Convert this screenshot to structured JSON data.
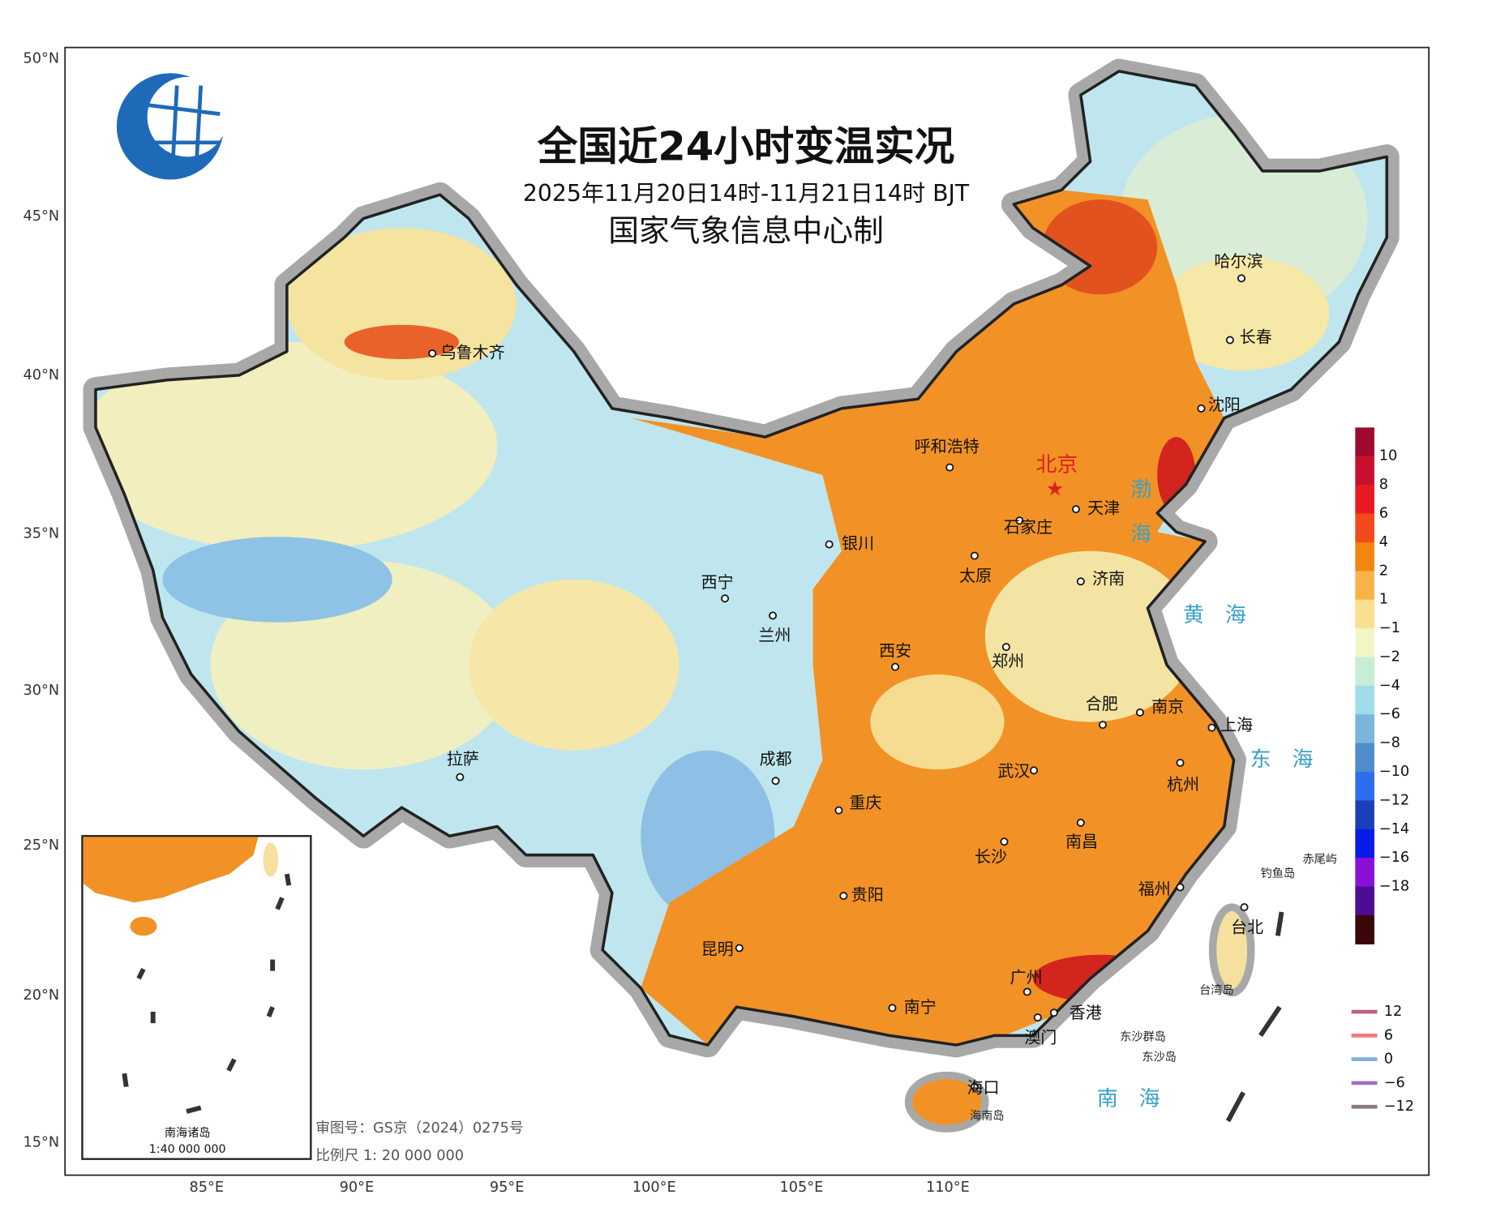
{
  "header": {
    "title": "全国近24小时变温实况",
    "subtitle": "2025年11月20日14时-11月21日14时 BJT",
    "producer": "国家气象信息中心制"
  },
  "axes": {
    "latitude": [
      "50°N",
      "45°N",
      "40°N",
      "35°N",
      "30°N",
      "25°N",
      "20°N",
      "15°N"
    ],
    "longitude": [
      "85°E",
      "90°E",
      "95°E",
      "100°E",
      "105°E",
      "110°E"
    ]
  },
  "legend": {
    "colors": [
      "#9e0b2e",
      "#c8102e",
      "#e81a22",
      "#f24a1c",
      "#f3860e",
      "#f6b448",
      "#f8e08e",
      "#f4f6c6",
      "#c6eed6",
      "#9fdcea",
      "#7ab5dc",
      "#4e8ccb",
      "#2f6df0",
      "#1b3fb8",
      "#0a1ae8",
      "#8a10d8",
      "#4e0c96",
      "#3a0808"
    ],
    "labels": [
      "10",
      "8",
      "6",
      "4",
      "2",
      "1",
      "−1",
      "−2",
      "−4",
      "−6",
      "−8",
      "−10",
      "−12",
      "−14",
      "−16",
      "−18"
    ]
  },
  "contour_legend": [
    {
      "label": "12",
      "color": "#c0607a"
    },
    {
      "label": "6",
      "color": "#f07a80"
    },
    {
      "label": "0",
      "color": "#80b0e0"
    },
    {
      "label": "−6",
      "color": "#a070c8"
    },
    {
      "label": "−12",
      "color": "#8a7a80"
    }
  ],
  "capital": "北京",
  "cities": [
    "乌鲁木齐",
    "呼和浩特",
    "天津",
    "石家庄",
    "银川",
    "太原",
    "济南",
    "西宁",
    "兰州",
    "西安",
    "郑州",
    "合肥",
    "南京",
    "上海",
    "杭州",
    "武汉",
    "拉萨",
    "成都",
    "重庆",
    "长沙",
    "南昌",
    "贵阳",
    "福州",
    "昆明",
    "台北",
    "南宁",
    "广州",
    "香港",
    "澳门",
    "海口",
    "哈尔滨",
    "长春",
    "沈阳"
  ],
  "sea_labels": [
    "渤",
    "海",
    "黄　海",
    "东　海",
    "南　海"
  ],
  "island_labels": [
    "钓鱼岛",
    "赤尾屿",
    "台湾岛",
    "东沙群岛",
    "东沙岛",
    "海南岛"
  ],
  "inset": {
    "title": "南海诸岛",
    "scale": "1:40 000 000"
  },
  "footer": {
    "approval": "审图号：GS京（2024）0275号",
    "scale": "比例尺 1: 20 000 000"
  }
}
